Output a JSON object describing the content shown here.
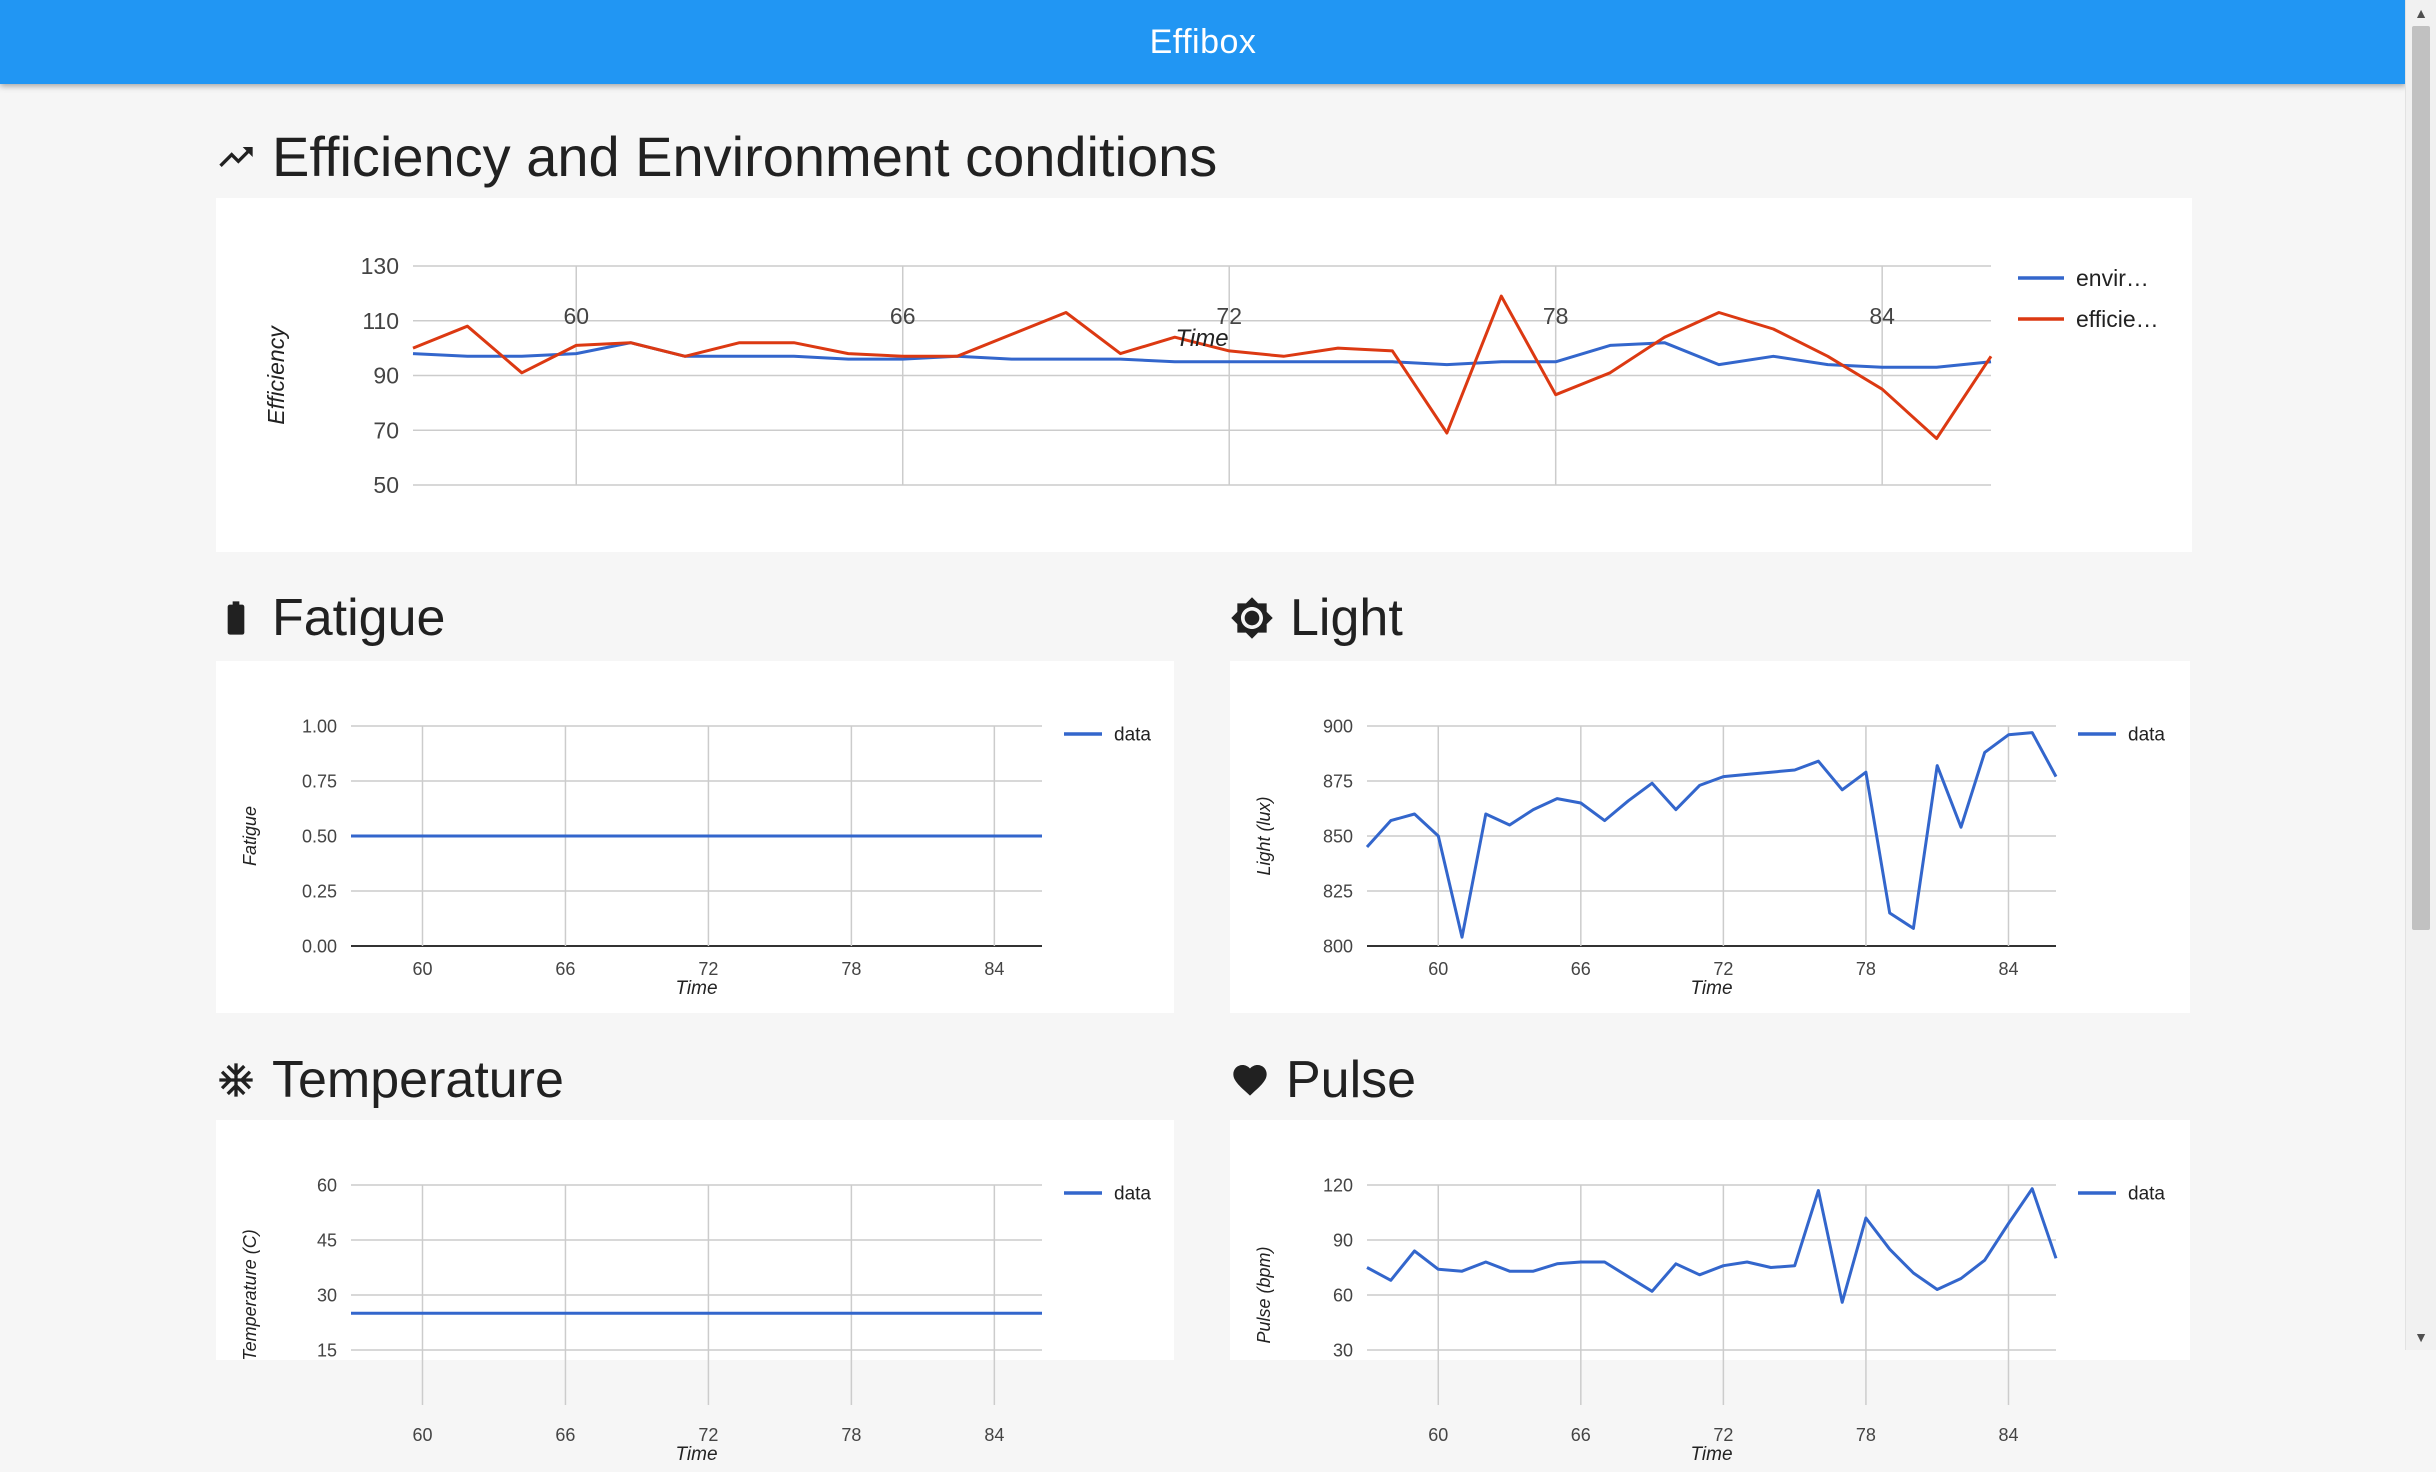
{
  "app": {
    "title": "Effibox"
  },
  "sections": {
    "main": {
      "title": "Efficiency and Environment conditions",
      "icon": "trending-up-icon"
    },
    "fatigue": {
      "title": "Fatigue",
      "icon": "battery-icon"
    },
    "light": {
      "title": "Light",
      "icon": "brightness-icon"
    },
    "temperature": {
      "title": "Temperature",
      "icon": "snowflake-icon"
    },
    "pulse": {
      "title": "Pulse",
      "icon": "heart-icon"
    }
  },
  "colors": {
    "appbar": "#2196f3",
    "series_blue": "#3366cc",
    "series_red": "#dc3912",
    "grid": "#cccccc"
  },
  "chart_data": [
    {
      "id": "efficiency",
      "type": "line",
      "xlabel": "Time",
      "ylabel": "Efficiency",
      "xlim": [
        57,
        86
      ],
      "ylim": [
        50,
        130
      ],
      "x_ticks": [
        "60",
        "66",
        "72",
        "78",
        "84"
      ],
      "y_ticks": [
        "50",
        "70",
        "90",
        "110",
        "130"
      ],
      "legend_position": "right",
      "series": [
        {
          "name": "envir…",
          "color": "#3366cc",
          "points": [
            [
              57,
              98
            ],
            [
              58,
              97
            ],
            [
              59,
              97
            ],
            [
              60,
              98
            ],
            [
              61,
              102
            ],
            [
              62,
              97
            ],
            [
              63,
              97
            ],
            [
              64,
              97
            ],
            [
              65,
              96
            ],
            [
              66,
              96
            ],
            [
              67,
              97
            ],
            [
              68,
              96
            ],
            [
              69,
              96
            ],
            [
              70,
              96
            ],
            [
              71,
              95
            ],
            [
              72,
              95
            ],
            [
              73,
              95
            ],
            [
              74,
              95
            ],
            [
              75,
              95
            ],
            [
              76,
              94
            ],
            [
              77,
              95
            ],
            [
              78,
              95
            ],
            [
              79,
              101
            ],
            [
              80,
              102
            ],
            [
              81,
              94
            ],
            [
              82,
              97
            ],
            [
              83,
              94
            ],
            [
              84,
              93
            ],
            [
              85,
              93
            ],
            [
              86,
              95
            ]
          ]
        },
        {
          "name": "efficie…",
          "color": "#dc3912",
          "points": [
            [
              57,
              100
            ],
            [
              58,
              108
            ],
            [
              59,
              91
            ],
            [
              60,
              101
            ],
            [
              61,
              102
            ],
            [
              62,
              97
            ],
            [
              63,
              102
            ],
            [
              64,
              102
            ],
            [
              65,
              98
            ],
            [
              66,
              97
            ],
            [
              67,
              97
            ],
            [
              68,
              105
            ],
            [
              69,
              113
            ],
            [
              70,
              98
            ],
            [
              71,
              104
            ],
            [
              72,
              99
            ],
            [
              73,
              97
            ],
            [
              74,
              100
            ],
            [
              75,
              99
            ],
            [
              76,
              69
            ],
            [
              77,
              119
            ],
            [
              78,
              83
            ],
            [
              79,
              91
            ],
            [
              80,
              104
            ],
            [
              81,
              113
            ],
            [
              82,
              107
            ],
            [
              83,
              97
            ],
            [
              84,
              85
            ],
            [
              85,
              67
            ],
            [
              86,
              97
            ]
          ]
        }
      ]
    },
    {
      "id": "fatigue",
      "type": "line",
      "xlabel": "Time",
      "ylabel": "Fatigue",
      "xlim": [
        57,
        86
      ],
      "ylim": [
        0,
        1
      ],
      "x_ticks": [
        "60",
        "66",
        "72",
        "78",
        "84"
      ],
      "y_ticks": [
        "0.00",
        "0.25",
        "0.50",
        "0.75",
        "1.00"
      ],
      "legend_position": "right",
      "series": [
        {
          "name": "data",
          "color": "#3366cc",
          "points": [
            [
              57,
              0.5
            ],
            [
              86,
              0.5
            ]
          ]
        }
      ]
    },
    {
      "id": "light",
      "type": "line",
      "xlabel": "Time",
      "ylabel": "Light (lux)",
      "xlim": [
        57,
        86
      ],
      "ylim": [
        800,
        900
      ],
      "x_ticks": [
        "60",
        "66",
        "72",
        "78",
        "84"
      ],
      "y_ticks": [
        "800",
        "825",
        "850",
        "875",
        "900"
      ],
      "legend_position": "right",
      "series": [
        {
          "name": "data",
          "color": "#3366cc",
          "points": [
            [
              57,
              845
            ],
            [
              58,
              857
            ],
            [
              59,
              860
            ],
            [
              60,
              850
            ],
            [
              61,
              804
            ],
            [
              62,
              860
            ],
            [
              63,
              855
            ],
            [
              64,
              862
            ],
            [
              65,
              867
            ],
            [
              66,
              865
            ],
            [
              67,
              857
            ],
            [
              68,
              866
            ],
            [
              69,
              874
            ],
            [
              70,
              862
            ],
            [
              71,
              873
            ],
            [
              72,
              877
            ],
            [
              73,
              878
            ],
            [
              74,
              879
            ],
            [
              75,
              880
            ],
            [
              76,
              884
            ],
            [
              77,
              871
            ],
            [
              78,
              879
            ],
            [
              79,
              815
            ],
            [
              80,
              808
            ],
            [
              81,
              882
            ],
            [
              82,
              854
            ],
            [
              83,
              888
            ],
            [
              84,
              896
            ],
            [
              85,
              897
            ],
            [
              86,
              877
            ]
          ]
        }
      ]
    },
    {
      "id": "temperature",
      "type": "line",
      "xlabel": "Time",
      "ylabel": "Temperature (C)",
      "xlim": [
        57,
        86
      ],
      "ylim": [
        0,
        60
      ],
      "x_ticks": [
        "60",
        "66",
        "72",
        "78",
        "84"
      ],
      "y_ticks": [
        "15",
        "30",
        "45",
        "60"
      ],
      "legend_position": "right",
      "series": [
        {
          "name": "data",
          "color": "#3366cc",
          "points": [
            [
              57,
              25
            ],
            [
              86,
              25
            ]
          ]
        }
      ]
    },
    {
      "id": "pulse",
      "type": "line",
      "xlabel": "Time",
      "ylabel": "Pulse (bpm)",
      "xlim": [
        57,
        86
      ],
      "ylim": [
        0,
        120
      ],
      "x_ticks": [
        "60",
        "66",
        "72",
        "78",
        "84"
      ],
      "y_ticks": [
        "30",
        "60",
        "90",
        "120"
      ],
      "legend_position": "right",
      "series": [
        {
          "name": "data",
          "color": "#3366cc",
          "points": [
            [
              57,
              75
            ],
            [
              58,
              68
            ],
            [
              59,
              84
            ],
            [
              60,
              74
            ],
            [
              61,
              73
            ],
            [
              62,
              78
            ],
            [
              63,
              73
            ],
            [
              64,
              73
            ],
            [
              65,
              77
            ],
            [
              66,
              78
            ],
            [
              67,
              78
            ],
            [
              68,
              70
            ],
            [
              69,
              62
            ],
            [
              70,
              77
            ],
            [
              71,
              71
            ],
            [
              72,
              76
            ],
            [
              73,
              78
            ],
            [
              74,
              75
            ],
            [
              75,
              76
            ],
            [
              76,
              117
            ],
            [
              77,
              56
            ],
            [
              78,
              102
            ],
            [
              79,
              85
            ],
            [
              80,
              72
            ],
            [
              81,
              63
            ],
            [
              82,
              69
            ],
            [
              83,
              79
            ],
            [
              84,
              99
            ],
            [
              85,
              118
            ],
            [
              86,
              80
            ]
          ]
        }
      ]
    }
  ]
}
